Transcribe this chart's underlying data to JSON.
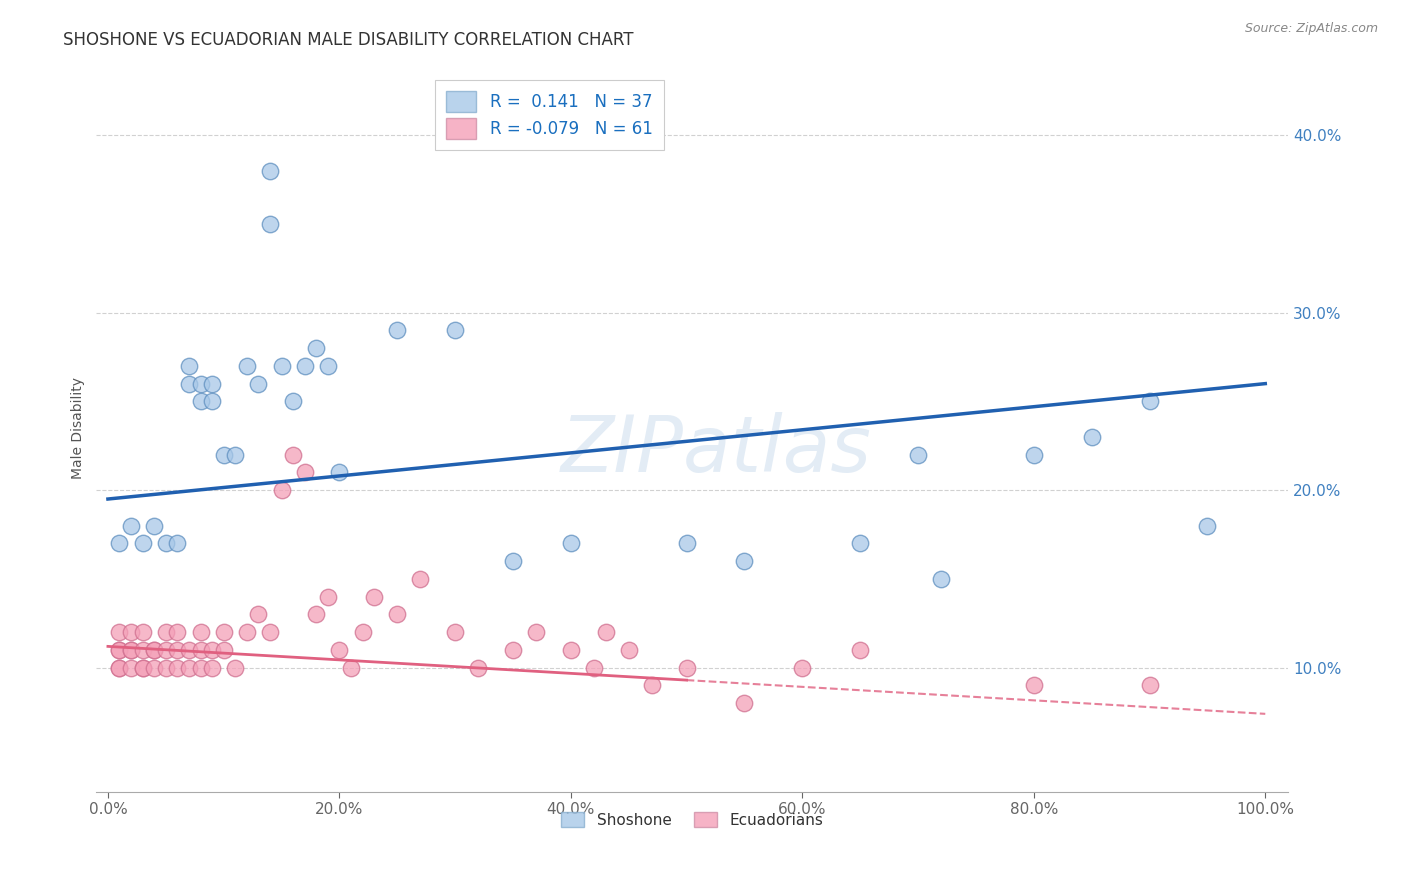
{
  "title": "SHOSHONE VS ECUADORIAN MALE DISABILITY CORRELATION CHART",
  "source": "Source: ZipAtlas.com",
  "xlabel_vals": [
    0,
    20,
    40,
    60,
    80,
    100
  ],
  "ylabel": "Male Disability",
  "ylabel_vals": [
    10,
    20,
    30,
    40
  ],
  "ylim": [
    3,
    44
  ],
  "xlim": [
    -1,
    102
  ],
  "watermark": "ZIPatlas",
  "R_blue": 0.141,
  "N_blue": 37,
  "R_pink": -0.079,
  "N_pink": 61,
  "shoshone_color": "#A8C8E8",
  "ecuadorian_color": "#F4A0B8",
  "blue_line_color": "#2060B0",
  "pink_line_color": "#E06080",
  "grid_color": "#CCCCCC",
  "blue_intercept": 19.5,
  "blue_slope": 0.065,
  "pink_intercept": 11.2,
  "pink_slope": -0.038,
  "pink_solid_end": 50,
  "blue_x": [
    1,
    2,
    3,
    4,
    5,
    6,
    7,
    7,
    8,
    8,
    9,
    9,
    10,
    11,
    12,
    13,
    14,
    14,
    15,
    16,
    17,
    18,
    19,
    20,
    25,
    30,
    35,
    40,
    50,
    55,
    65,
    70,
    72,
    80,
    85,
    90,
    95
  ],
  "blue_y": [
    17,
    18,
    17,
    18,
    17,
    17,
    27,
    26,
    26,
    25,
    26,
    25,
    22,
    22,
    27,
    26,
    38,
    35,
    27,
    25,
    27,
    28,
    27,
    21,
    29,
    29,
    16,
    17,
    17,
    16,
    17,
    22,
    15,
    22,
    23,
    25,
    18
  ],
  "pink_x": [
    1,
    1,
    1,
    1,
    1,
    2,
    2,
    2,
    2,
    3,
    3,
    3,
    3,
    4,
    4,
    4,
    5,
    5,
    5,
    6,
    6,
    6,
    7,
    7,
    8,
    8,
    8,
    9,
    9,
    10,
    10,
    11,
    12,
    13,
    14,
    15,
    16,
    17,
    18,
    19,
    20,
    21,
    22,
    23,
    25,
    27,
    30,
    32,
    35,
    37,
    40,
    42,
    43,
    45,
    47,
    50,
    55,
    60,
    65,
    80,
    90
  ],
  "pink_y": [
    11,
    11,
    10,
    12,
    10,
    11,
    10,
    12,
    11,
    11,
    10,
    12,
    10,
    11,
    10,
    11,
    12,
    11,
    10,
    11,
    10,
    12,
    11,
    10,
    12,
    11,
    10,
    10,
    11,
    12,
    11,
    10,
    12,
    13,
    12,
    20,
    22,
    21,
    13,
    14,
    11,
    10,
    12,
    14,
    13,
    15,
    12,
    10,
    11,
    12,
    11,
    10,
    12,
    11,
    9,
    10,
    8,
    10,
    11,
    9,
    9
  ]
}
